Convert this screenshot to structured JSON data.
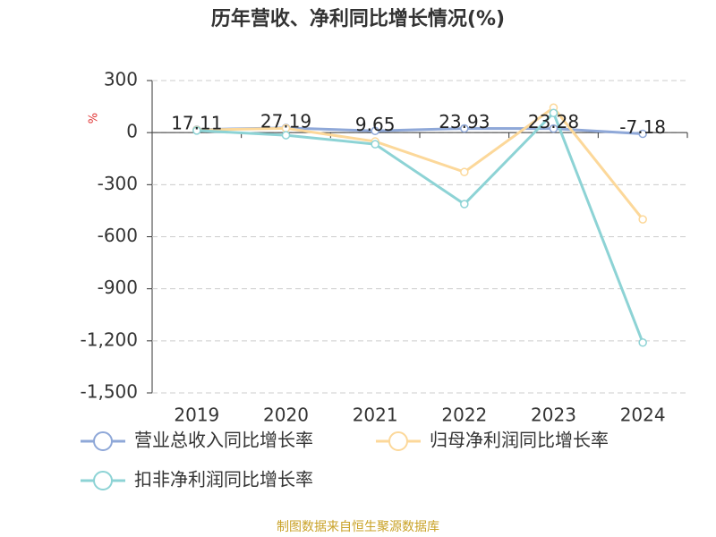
{
  "chart_data": {
    "type": "line",
    "title": "历年营收、净利同比增长情况(%)",
    "y_label": "%",
    "categories": [
      "2019",
      "2020",
      "2021",
      "2022",
      "2023",
      "2024"
    ],
    "series": [
      {
        "name": "营业总收入同比增长率",
        "color": "#8fa8d8",
        "values": [
          17.11,
          27.19,
          9.65,
          23.93,
          23.28,
          -7.18
        ],
        "show_labels": true
      },
      {
        "name": "归母净利润同比增长率",
        "color": "#fcd89a",
        "values": [
          15,
          25,
          -51,
          -227,
          144,
          -500
        ]
      },
      {
        "name": "扣非净利润同比增长率",
        "color": "#8dd3d5",
        "values": [
          12,
          -15,
          -67,
          -412,
          113,
          -1210
        ]
      }
    ],
    "ylim": [
      -1500,
      300
    ],
    "yticks": [
      300,
      0,
      -300,
      -600,
      -900,
      {
        "value": -1200,
        "label": "-1,200"
      },
      {
        "value": -1500,
        "label": "-1,500"
      }
    ],
    "grid": true,
    "source": "制图数据来自恒生聚源数据库"
  }
}
